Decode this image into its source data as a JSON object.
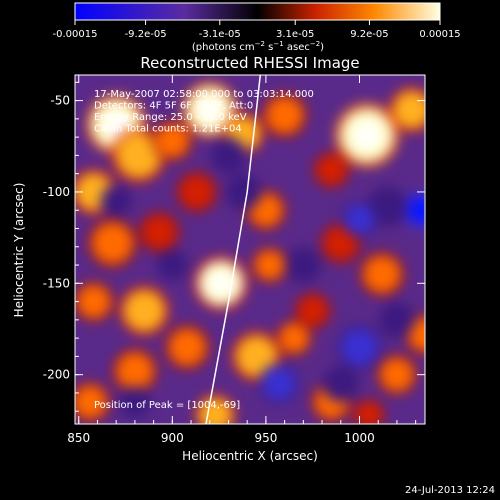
{
  "chart_data": {
    "type": "heatmap",
    "title": "Reconstructed RHESSI Image",
    "xlabel": "Heliocentric X (arcsec)",
    "ylabel": "Heliocentric Y (arcsec)",
    "xlim": [
      848,
      1035
    ],
    "ylim": [
      -227,
      -36
    ],
    "x_ticks": [
      850,
      900,
      950,
      1000
    ],
    "y_ticks": [
      -50,
      -100,
      -150,
      -200
    ],
    "colorbar": {
      "range": [
        -0.00015,
        0.00015
      ],
      "tick_values": [
        -0.00015,
        -9.2e-05,
        -3.1e-05,
        3.1e-05,
        9.2e-05,
        0.00015
      ],
      "tick_labels": [
        "-0.00015",
        "-9.2e-05",
        "-3.1e-05",
        "3.1e-05",
        "9.2e-05",
        "0.00015"
      ],
      "unit_label": "(photons cm-2 s-1 asec-2)",
      "colors": [
        "#0000ff",
        "#5a2ca0",
        "#000000",
        "#cc2200",
        "#ff8800",
        "#ffffe0"
      ]
    },
    "annotations": [
      "17-May-2007 02:58:00.000 to 03:03:14.000",
      "Detectors: 4F 5F 6F 7F 8F, Att:0",
      "Energy Range: 25.0 - 50.0 keV",
      "Clean    Total counts: 1.21E+04"
    ],
    "peak_label": "Position of Peak = [1004,-69]",
    "peak": [
      1004,
      -69
    ],
    "limb_curve": [
      [
        947,
        -36
      ],
      [
        940,
        -100
      ],
      [
        930,
        -160
      ],
      [
        918,
        -227
      ]
    ],
    "blobs": [
      {
        "x": 870,
        "y": -63,
        "v": 1.0,
        "s": 13
      },
      {
        "x": 882,
        "y": -80,
        "v": 0.8,
        "s": 12
      },
      {
        "x": 858,
        "y": -100,
        "v": 0.7,
        "s": 10
      },
      {
        "x": 920,
        "y": -55,
        "v": 0.95,
        "s": 12
      },
      {
        "x": 900,
        "y": -72,
        "v": 0.55,
        "s": 9
      },
      {
        "x": 938,
        "y": -68,
        "v": 0.7,
        "s": 9
      },
      {
        "x": 960,
        "y": -58,
        "v": 0.65,
        "s": 10
      },
      {
        "x": 1004,
        "y": -69,
        "v": 1.0,
        "s": 14
      },
      {
        "x": 1028,
        "y": -55,
        "v": 0.7,
        "s": 10
      },
      {
        "x": 985,
        "y": -88,
        "v": 0.45,
        "s": 8
      },
      {
        "x": 913,
        "y": -100,
        "v": 0.45,
        "s": 9
      },
      {
        "x": 868,
        "y": -128,
        "v": 0.65,
        "s": 11
      },
      {
        "x": 893,
        "y": -122,
        "v": 0.5,
        "s": 9
      },
      {
        "x": 950,
        "y": -110,
        "v": 0.55,
        "s": 9
      },
      {
        "x": 926,
        "y": -150,
        "v": 0.9,
        "s": 12
      },
      {
        "x": 952,
        "y": -140,
        "v": 0.55,
        "s": 8
      },
      {
        "x": 885,
        "y": -165,
        "v": 0.7,
        "s": 11
      },
      {
        "x": 858,
        "y": -160,
        "v": 0.55,
        "s": 9
      },
      {
        "x": 990,
        "y": -128,
        "v": 0.5,
        "s": 9
      },
      {
        "x": 1012,
        "y": -145,
        "v": 0.55,
        "s": 10
      },
      {
        "x": 975,
        "y": -165,
        "v": 0.45,
        "s": 8
      },
      {
        "x": 1035,
        "y": -178,
        "v": 0.55,
        "s": 9
      },
      {
        "x": 908,
        "y": -185,
        "v": 0.55,
        "s": 10
      },
      {
        "x": 945,
        "y": -190,
        "v": 0.8,
        "s": 11
      },
      {
        "x": 880,
        "y": -198,
        "v": 0.65,
        "s": 10
      },
      {
        "x": 965,
        "y": -180,
        "v": 0.6,
        "s": 8
      },
      {
        "x": 1020,
        "y": -200,
        "v": 0.55,
        "s": 9
      },
      {
        "x": 856,
        "y": -215,
        "v": 0.6,
        "s": 9
      },
      {
        "x": 923,
        "y": -222,
        "v": 0.75,
        "s": 9
      },
      {
        "x": 985,
        "y": -215,
        "v": 0.55,
        "s": 9
      },
      {
        "x": 1005,
        "y": -222,
        "v": 0.45,
        "s": 7
      },
      {
        "x": 1033,
        "y": -110,
        "v": -0.9,
        "s": 8
      },
      {
        "x": 1015,
        "y": -108,
        "v": -0.45,
        "s": 9
      },
      {
        "x": 1000,
        "y": -115,
        "v": -0.55,
        "s": 8
      },
      {
        "x": 957,
        "y": -205,
        "v": -0.5,
        "s": 9
      },
      {
        "x": 1000,
        "y": -185,
        "v": -0.5,
        "s": 10
      },
      {
        "x": 990,
        "y": -205,
        "v": -0.4,
        "s": 8
      },
      {
        "x": 938,
        "y": -100,
        "v": -0.4,
        "s": 8
      },
      {
        "x": 870,
        "y": -105,
        "v": -0.45,
        "s": 7
      },
      {
        "x": 930,
        "y": -80,
        "v": -0.35,
        "s": 8
      },
      {
        "x": 970,
        "y": -140,
        "v": -0.4,
        "s": 8
      },
      {
        "x": 1020,
        "y": -170,
        "v": -0.4,
        "s": 8
      },
      {
        "x": 900,
        "y": -140,
        "v": -0.3,
        "s": 7
      },
      {
        "x": 880,
        "y": -215,
        "v": -0.35,
        "s": 7
      }
    ]
  },
  "footer": {
    "date_stamp": "24-Jul-2013 12:24"
  }
}
